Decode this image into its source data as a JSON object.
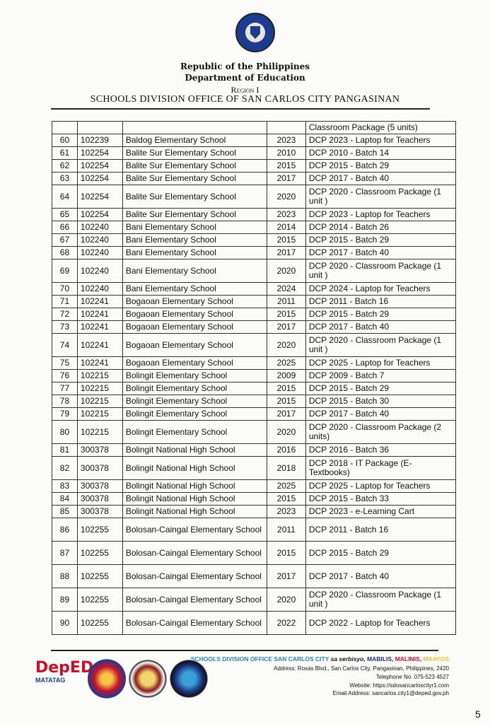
{
  "header": {
    "line1": "Republic of the Philippines",
    "line2": "Department of Education",
    "region": "Region I",
    "office": "SCHOOLS DIVISION OFFICE OF SAN CARLOS CITY PANGASINAN"
  },
  "table": {
    "carryover": {
      "no": "",
      "id": "",
      "school": "",
      "year": "",
      "item": "Classroom Package (5 units)"
    },
    "rows": [
      {
        "no": "60",
        "id": "102239",
        "school": "Baldog Elementary School",
        "year": "2023",
        "item": "DCP 2023 - Laptop for Teachers"
      },
      {
        "no": "61",
        "id": "102254",
        "school": "Balite Sur Elementary School",
        "year": "2010",
        "item": "DCP 2010 - Batch 14"
      },
      {
        "no": "62",
        "id": "102254",
        "school": "Balite Sur Elementary School",
        "year": "2015",
        "item": "DCP 2015 - Batch 29"
      },
      {
        "no": "63",
        "id": "102254",
        "school": "Balite Sur Elementary School",
        "year": "2017",
        "item": "DCP 2017 - Batch 40"
      },
      {
        "no": "64",
        "id": "102254",
        "school": "Balite Sur Elementary School",
        "year": "2020",
        "item": "DCP 2020 - Classroom Package (1 unit )"
      },
      {
        "no": "65",
        "id": "102254",
        "school": "Balite Sur Elementary School",
        "year": "2023",
        "item": "DCP 2023 - Laptop for Teachers"
      },
      {
        "no": "66",
        "id": "102240",
        "school": "Bani Elementary School",
        "year": "2014",
        "item": "DCP 2014 - Batch 26"
      },
      {
        "no": "67",
        "id": "102240",
        "school": "Bani Elementary School",
        "year": "2015",
        "item": "DCP 2015 - Batch 29"
      },
      {
        "no": "68",
        "id": "102240",
        "school": "Bani Elementary School",
        "year": "2017",
        "item": "DCP 2017 - Batch 40"
      },
      {
        "no": "69",
        "id": "102240",
        "school": "Bani Elementary School",
        "year": "2020",
        "item": "DCP 2020 - Classroom Package (1 unit )"
      },
      {
        "no": "70",
        "id": "102240",
        "school": "Bani Elementary School",
        "year": "2024",
        "item": "DCP 2024 - Laptop for Teachers"
      },
      {
        "no": "71",
        "id": "102241",
        "school": "Bogaoan Elementary School",
        "year": "2011",
        "item": "DCP 2011 - Batch 16"
      },
      {
        "no": "72",
        "id": "102241",
        "school": "Bogaoan Elementary School",
        "year": "2015",
        "item": "DCP 2015 - Batch 29"
      },
      {
        "no": "73",
        "id": "102241",
        "school": "Bogaoan Elementary School",
        "year": "2017",
        "item": "DCP 2017 - Batch 40"
      },
      {
        "no": "74",
        "id": "102241",
        "school": "Bogaoan Elementary School",
        "year": "2020",
        "item": "DCP 2020 - Classroom Package (1 unit )"
      },
      {
        "no": "75",
        "id": "102241",
        "school": "Bogaoan Elementary School",
        "year": "2025",
        "item": "DCP 2025 - Laptop for Teachers"
      },
      {
        "no": "76",
        "id": "102215",
        "school": "Bolingit Elementary School",
        "year": "2009",
        "item": "DCP 2009 - Batch 7"
      },
      {
        "no": "77",
        "id": "102215",
        "school": "Bolingit Elementary School",
        "year": "2015",
        "item": "DCP 2015 - Batch 29"
      },
      {
        "no": "78",
        "id": "102215",
        "school": "Bolingit Elementary School",
        "year": "2015",
        "item": "DCP 2015 - Batch 30"
      },
      {
        "no": "79",
        "id": "102215",
        "school": "Bolingit Elementary School",
        "year": "2017",
        "item": "DCP 2017 - Batch 40"
      },
      {
        "no": "80",
        "id": "102215",
        "school": "Bolingit Elementary School",
        "year": "2020",
        "item": "DCP 2020 - Classroom Package (2 units)"
      },
      {
        "no": "81",
        "id": "300378",
        "school": "Bolingit National High School",
        "year": "2016",
        "item": "DCP 2016 - Batch 36"
      },
      {
        "no": "82",
        "id": "300378",
        "school": "Bolingit National High School",
        "year": "2018",
        "item": "DCP 2018 - IT Package (E-Textbooks)"
      },
      {
        "no": "83",
        "id": "300378",
        "school": "Bolingit National High School",
        "year": "2025",
        "item": "DCP 2025 - Laptop for Teachers"
      },
      {
        "no": "84",
        "id": "300378",
        "school": "Bolingit National High School",
        "year": "2015",
        "item": "DCP 2015 - Batch 33"
      },
      {
        "no": "85",
        "id": "300378",
        "school": "Bolingit National High School",
        "year": "2023",
        "item": "DCP 2023 - e-Learning Cart"
      },
      {
        "no": "86",
        "id": "102255",
        "school": "Bolosan-Caingal Elementary School",
        "year": "2011",
        "item": "DCP 2011 - Batch 16"
      },
      {
        "no": "87",
        "id": "102255",
        "school": "Bolosan-Caingal Elementary School",
        "year": "2015",
        "item": "DCP 2015 - Batch 29"
      },
      {
        "no": "88",
        "id": "102255",
        "school": "Bolosan-Caingal Elementary School",
        "year": "2017",
        "item": "DCP 2017 - Batch 40"
      },
      {
        "no": "89",
        "id": "102255",
        "school": "Bolosan-Caingal Elementary School",
        "year": "2020",
        "item": "DCP 2020 - Classroom Package (1 unit )"
      },
      {
        "no": "90",
        "id": "102255",
        "school": "Bolosan-Caingal Elementary School",
        "year": "2022",
        "item": "DCP 2022 - Laptop for Teachers"
      }
    ]
  },
  "footer": {
    "office": "SCHOOLS DIVISION OFFICE SAN CARLOS CITY",
    "motto_prefix": "sa serbisyo,",
    "motto": [
      "MABILIS,",
      "MALINIS,",
      "MAAYOS"
    ],
    "motto_colors": [
      "#1d2f7a",
      "#c8102e",
      "#e8c23a"
    ],
    "address": "Address: Roxas Blvd., San Carlos City, Pangasinan, Philippines, 2420",
    "telephone": "Telephone No.  075-523 4527",
    "website": "Website: https://sdosancarloscityr1.com",
    "email": "Email Address: sancarlos.city1@deped.gov.ph",
    "logos": {
      "deped": "DepED",
      "matatag": "MATATAG",
      "bagong": "BAGONG PILIPINAS"
    }
  },
  "page_number": "5"
}
